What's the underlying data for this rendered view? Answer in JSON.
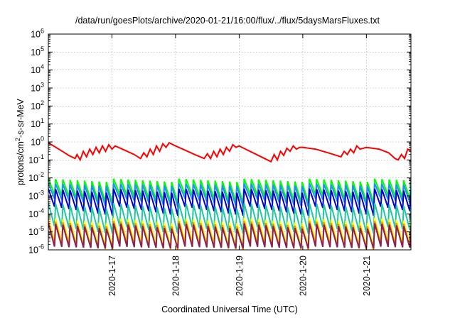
{
  "chart_data": {
    "type": "line",
    "title": "/data/run/goesPlots/archive/2020-01-21/16:00/flux/../flux/5daysMarsFluxes.txt",
    "xlabel": "Coordinated Universal Time (UTC)",
    "ylabel_prefix": "protons/cm",
    "ylabel_sup": "2",
    "ylabel_suffix": "-s-sr-MeV",
    "y_scale": "log",
    "ylim": [
      1e-06,
      1000000.0
    ],
    "xlim": [
      16.0,
      21.7
    ],
    "x_units": "days of January 2020 (UTC)",
    "grid": true,
    "legend": "none",
    "y_ticks": [
      {
        "value": -6,
        "base": "10",
        "exp": "-6"
      },
      {
        "value": -5,
        "base": "10",
        "exp": "-5"
      },
      {
        "value": -4,
        "base": "10",
        "exp": "-4"
      },
      {
        "value": -3,
        "base": "10",
        "exp": "-3"
      },
      {
        "value": -2,
        "base": "10",
        "exp": "-2"
      },
      {
        "value": -1,
        "base": "10",
        "exp": "-1"
      },
      {
        "value": 0,
        "base": "10",
        "exp": "0"
      },
      {
        "value": 1,
        "base": "10",
        "exp": "1"
      },
      {
        "value": 2,
        "base": "10",
        "exp": "2"
      },
      {
        "value": 3,
        "base": "10",
        "exp": "3"
      },
      {
        "value": 4,
        "base": "10",
        "exp": "4"
      },
      {
        "value": 5,
        "base": "10",
        "exp": "5"
      },
      {
        "value": 6,
        "base": "10",
        "exp": "6"
      }
    ],
    "x_ticks": [
      {
        "value": 17,
        "label": "2020-1-17"
      },
      {
        "value": 18,
        "label": "2020-1-18"
      },
      {
        "value": 19,
        "label": "2020-1-19"
      },
      {
        "value": 20,
        "label": "2020-1-20"
      },
      {
        "value": 21,
        "label": "2020-1-21"
      }
    ],
    "series": [
      {
        "color": "#ff0000",
        "x": [
          16.0,
          16.12,
          16.22,
          16.32,
          16.42,
          16.45,
          16.5,
          16.55,
          16.6,
          16.65,
          16.7,
          16.75,
          16.8,
          16.85,
          16.9,
          16.95,
          17.0,
          17.05,
          17.2,
          17.35,
          17.45,
          17.5,
          17.55,
          17.6,
          17.65,
          17.7,
          17.75,
          17.8,
          17.85,
          17.9,
          18.0,
          18.15,
          18.3,
          18.45,
          18.5,
          18.55,
          18.6,
          18.65,
          18.7,
          18.75,
          18.8,
          18.85,
          18.9,
          18.95,
          19.0,
          19.1,
          19.25,
          19.4,
          19.5,
          19.55,
          19.6,
          19.65,
          19.7,
          19.75,
          19.8,
          19.85,
          19.9,
          19.95,
          20.0,
          20.2,
          20.4,
          20.6,
          20.65,
          20.7,
          20.75,
          20.8,
          20.85,
          20.9,
          21.0,
          21.2,
          21.35,
          21.45,
          21.5,
          21.55,
          21.6,
          21.65,
          21.7
        ],
        "y": [
          0.9,
          0.5,
          0.3,
          0.18,
          0.12,
          0.2,
          0.1,
          0.3,
          0.15,
          0.4,
          0.2,
          0.5,
          0.25,
          0.6,
          0.3,
          0.7,
          0.4,
          0.6,
          0.35,
          0.2,
          0.12,
          0.25,
          0.15,
          0.4,
          0.2,
          0.6,
          0.3,
          0.8,
          0.5,
          0.9,
          0.6,
          0.35,
          0.2,
          0.12,
          0.22,
          0.12,
          0.3,
          0.15,
          0.4,
          0.2,
          0.5,
          0.3,
          0.7,
          0.5,
          0.6,
          0.4,
          0.22,
          0.12,
          0.08,
          0.2,
          0.1,
          0.3,
          0.18,
          0.45,
          0.3,
          0.6,
          0.4,
          0.5,
          0.5,
          0.4,
          0.25,
          0.15,
          0.3,
          0.2,
          0.4,
          0.25,
          0.6,
          0.4,
          0.5,
          0.4,
          0.25,
          0.12,
          0.1,
          0.2,
          0.12,
          0.4,
          0.3
        ]
      },
      {
        "color": "#00ff00",
        "pattern": "sawtooth",
        "peaks": [
          0.009,
          0.006
        ],
        "troughs": [
          0.0012,
          0.0004
        ],
        "teeth": 50
      },
      {
        "color": "#1e90ff",
        "pattern": "sawtooth",
        "peaks": [
          0.005,
          0.0035
        ],
        "troughs": [
          0.0007,
          0.00025
        ],
        "teeth": 50
      },
      {
        "color": "#0000cd",
        "pattern": "sawtooth",
        "peaks": [
          0.0025,
          0.0015
        ],
        "troughs": [
          0.00025,
          8e-05
        ],
        "teeth": 50
      },
      {
        "color": "#20c8a0",
        "pattern": "sawtooth",
        "peaks": [
          0.0004,
          0.0002
        ],
        "troughs": [
          2e-05,
          8e-06
        ],
        "teeth": 50
      },
      {
        "color": "#ffff00",
        "pattern": "sawtooth",
        "peaks": [
          6e-05,
          3e-05
        ],
        "troughs": [
          3e-06,
          1.5e-06
        ],
        "teeth": 50
      },
      {
        "color": "#ff8c00",
        "pattern": "sawtooth",
        "peaks": [
          4e-05,
          2e-05
        ],
        "troughs": [
          2e-06,
          1e-06
        ],
        "teeth": 50
      },
      {
        "color": "#8b2252",
        "pattern": "sawtooth",
        "peaks": [
          3e-05,
          1.5e-05
        ],
        "troughs": [
          1.5e-06,
          1.2e-06
        ],
        "teeth": 50
      }
    ]
  }
}
